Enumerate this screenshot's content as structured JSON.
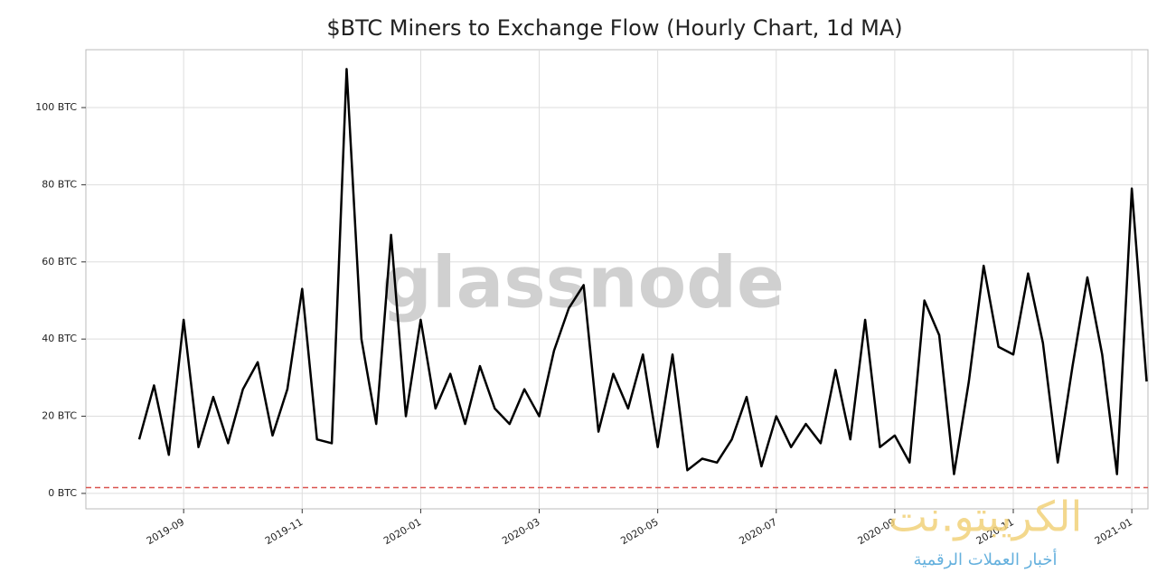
{
  "chart_data": {
    "type": "line",
    "title": "$BTC Miners to Exchange Flow (Hourly Chart, 1d MA)",
    "watermark": "glassnode",
    "logo_text": "الكريبتو.نت",
    "logo_subtext": "أخبار العملات الرقمية",
    "categories": [
      null,
      null,
      null,
      "2019-09",
      null,
      null,
      null,
      null,
      null,
      null,
      null,
      "2019-11",
      null,
      null,
      null,
      null,
      null,
      null,
      null,
      "2020-01",
      null,
      null,
      null,
      null,
      null,
      null,
      null,
      "2020-03",
      null,
      null,
      null,
      null,
      null,
      null,
      null,
      "2020-05",
      null,
      null,
      null,
      null,
      null,
      null,
      null,
      "2020-07",
      null,
      null,
      null,
      null,
      null,
      null,
      null,
      "2020-09",
      null,
      null,
      null,
      null,
      null,
      null,
      null,
      "2020-11",
      null,
      null,
      null,
      null,
      null,
      null,
      null,
      "2021-01",
      null
    ],
    "series": [
      {
        "name": "Miners to Exchange Flow",
        "color": "#000000",
        "values": [
          14,
          28,
          10,
          45,
          12,
          25,
          13,
          27,
          34,
          15,
          27,
          53,
          14,
          13,
          110,
          40,
          18,
          67,
          20,
          45,
          22,
          31,
          18,
          33,
          22,
          18,
          27,
          20,
          37,
          48,
          54,
          16,
          31,
          22,
          36,
          12,
          36,
          6,
          9,
          8,
          14,
          25,
          7,
          20,
          12,
          18,
          13,
          32,
          14,
          45,
          12,
          15,
          8,
          50,
          41,
          5,
          29,
          59,
          38,
          36,
          57,
          39,
          8,
          33,
          56,
          36,
          5,
          79,
          29
        ]
      }
    ],
    "threshold": 1.5,
    "threshold_color": "#d9534f",
    "ylim": [
      -4,
      115
    ],
    "yticks": [
      {
        "value": 0,
        "label": "0 BTC"
      },
      {
        "value": 20,
        "label": "20 BTC"
      },
      {
        "value": 40,
        "label": "40 BTC"
      },
      {
        "value": 60,
        "label": "60 BTC"
      },
      {
        "value": 80,
        "label": "80 BTC"
      },
      {
        "value": 100,
        "label": "100 BTC"
      }
    ],
    "grid": true
  }
}
